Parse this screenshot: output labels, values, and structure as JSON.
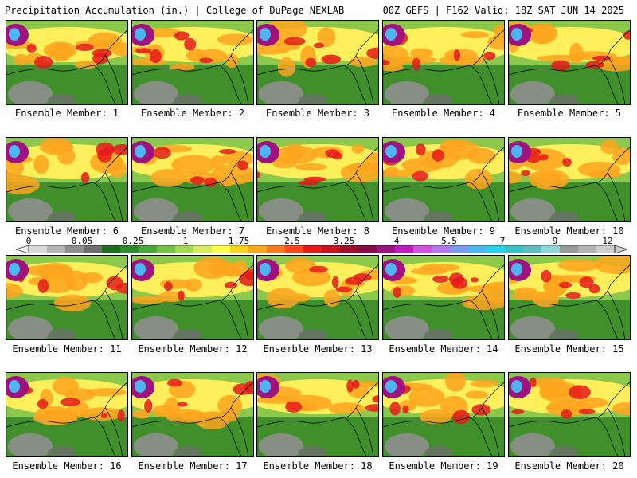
{
  "header": {
    "left": "Precipitation Accumulation (in.) | College of DuPage NEXLAB",
    "right": "00Z GEFS | F162 Valid: 18Z SAT JUN 14 2025"
  },
  "legend": {
    "ticks": [
      "0",
      "0.05",
      "0.25",
      "1",
      "1.75",
      "2.5",
      "3.25",
      "4",
      "5.5",
      "7",
      "9",
      "12"
    ],
    "colors": [
      "#d9d9d9",
      "#b5b5b5",
      "#8f8f8f",
      "#6e6e6e",
      "#1f6b1f",
      "#2e8b2e",
      "#4aa83a",
      "#76c043",
      "#a6d84c",
      "#d6ec5a",
      "#ffff4d",
      "#ffd21f",
      "#ffa51f",
      "#ff7a1f",
      "#ff4a1a",
      "#e51a1a",
      "#c4141f",
      "#a00f2a",
      "#8a0c44",
      "#a01280",
      "#c21ac0",
      "#d24fe0",
      "#b277f0",
      "#7b99f0",
      "#4bb6f0",
      "#29d0e6",
      "#38c1c2",
      "#5fbdbd",
      "#8ed7d7",
      "#9a9a9a",
      "#b4b4b4",
      "#cfcfcf"
    ]
  },
  "members": [
    {
      "label": "Ensemble Member: 1"
    },
    {
      "label": "Ensemble Member: 2"
    },
    {
      "label": "Ensemble Member: 3"
    },
    {
      "label": "Ensemble Member: 4"
    },
    {
      "label": "Ensemble Member: 5"
    },
    {
      "label": "Ensemble Member: 6"
    },
    {
      "label": "Ensemble Member: 7"
    },
    {
      "label": "Ensemble Member: 8"
    },
    {
      "label": "Ensemble Member: 9"
    },
    {
      "label": "Ensemble Member: 10"
    },
    {
      "label": "Ensemble Member: 11"
    },
    {
      "label": "Ensemble Member: 12"
    },
    {
      "label": "Ensemble Member: 13"
    },
    {
      "label": "Ensemble Member: 14"
    },
    {
      "label": "Ensemble Member: 15"
    },
    {
      "label": "Ensemble Member: 16"
    },
    {
      "label": "Ensemble Member: 17"
    },
    {
      "label": "Ensemble Member: 18"
    },
    {
      "label": "Ensemble Member: 19"
    },
    {
      "label": "Ensemble Member: 20"
    }
  ]
}
